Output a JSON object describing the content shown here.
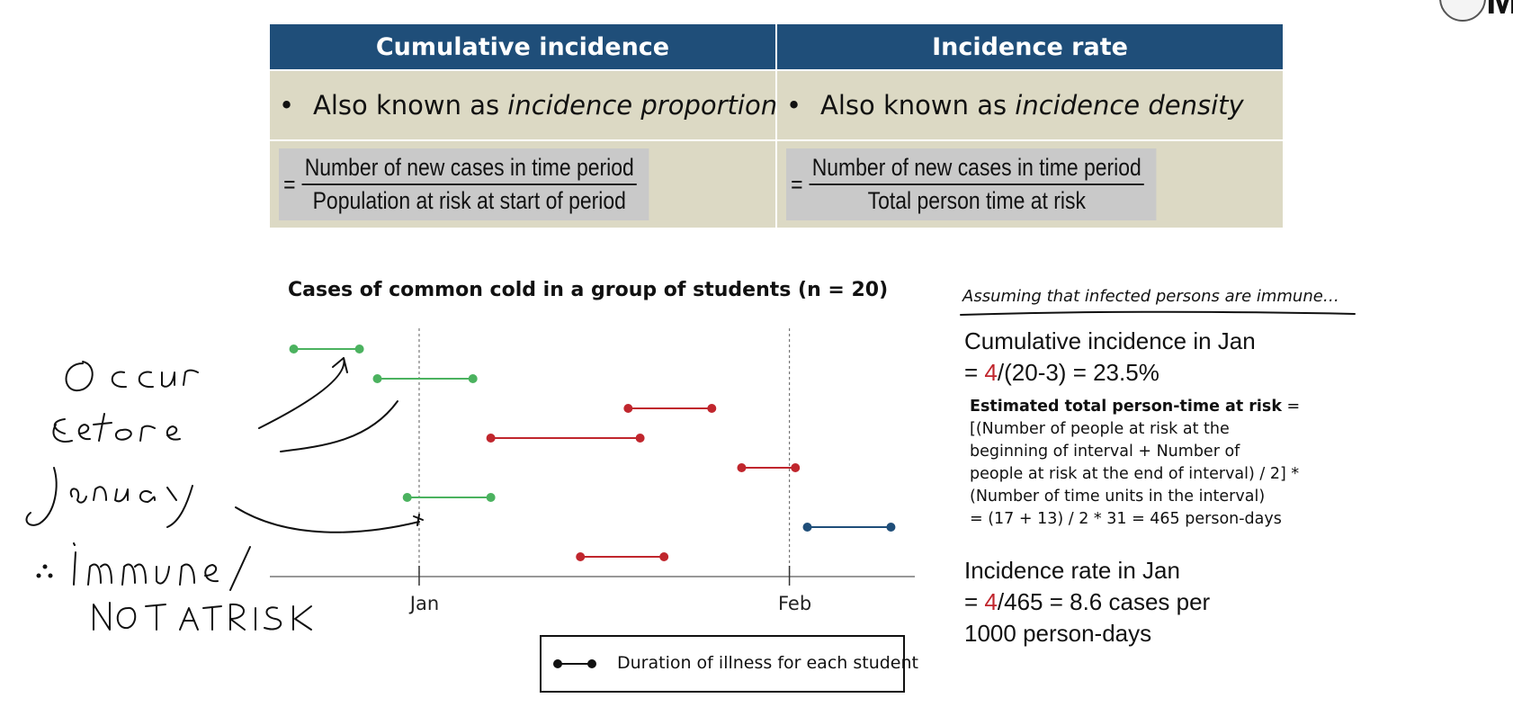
{
  "table": {
    "headers": [
      "Cumulative incidence",
      "Incidence rate"
    ],
    "aka": [
      {
        "prefix": "Also known as ",
        "term": "incidence proportion"
      },
      {
        "prefix": "Also known as ",
        "term": "incidence density"
      }
    ],
    "formulas": [
      {
        "numerator": "Number of new cases in time period",
        "denominator": "Population at risk at start of period"
      },
      {
        "numerator": "Number of new cases in time period",
        "denominator": "Total person time at risk"
      }
    ],
    "bullet": "•",
    "equals": "="
  },
  "logo": {
    "text": "Med"
  },
  "chart_data": {
    "type": "scatter",
    "title": "Cases of common cold in a group of students (n = 20)",
    "xlabel": "",
    "ylabel": "",
    "x_ticks": [
      "Jan",
      "Feb"
    ],
    "x_unit": "days relative to Jan 1",
    "xlim": [
      -12.5,
      41.5
    ],
    "colors": {
      "before_jan": "#4bb25f",
      "in_jan": "#c0262d",
      "in_feb": "#1f4e79"
    },
    "series": [
      {
        "start": -10.5,
        "end": -5,
        "color": "before_jan"
      },
      {
        "start": -3.5,
        "end": 4.5,
        "color": "before_jan"
      },
      {
        "start": 17.5,
        "end": 24.5,
        "color": "in_jan"
      },
      {
        "start": 6,
        "end": 18.5,
        "color": "in_jan"
      },
      {
        "start": 27,
        "end": 31.5,
        "color": "in_jan"
      },
      {
        "start": -1,
        "end": 6,
        "color": "before_jan"
      },
      {
        "start": 32.5,
        "end": 39.5,
        "color": "in_feb"
      },
      {
        "start": 13.5,
        "end": 20.5,
        "color": "in_jan"
      }
    ],
    "legend": "Duration of illness for each student"
  },
  "notes": {
    "assumption": "Assuming that infected persons are immune…",
    "ci_line1": "Cumulative incidence in Jan",
    "ci_eq": "= ",
    "ci_num": "4",
    "ci_rest": "/(20-3) = 23.5%",
    "ptime_title": "Estimated total person-time at risk",
    "ptime_lines": [
      " =",
      "[(Number of people at risk at the",
      "beginning of interval + Number of",
      "people at risk at the end of interval) / 2] *",
      "(Number of time units in the interval)",
      "= (17 + 13) / 2 * 31 = 465 person-days"
    ],
    "ir_line1": "Incidence rate in Jan",
    "ir_eq": "= ",
    "ir_num": "4",
    "ir_rest": "/465 = 8.6 cases per",
    "ir_line3": "1000 person-days"
  },
  "handwriting": {
    "lines": [
      "Occur",
      "before",
      "January",
      "∴ immune/",
      "NOT AT RISK"
    ]
  }
}
